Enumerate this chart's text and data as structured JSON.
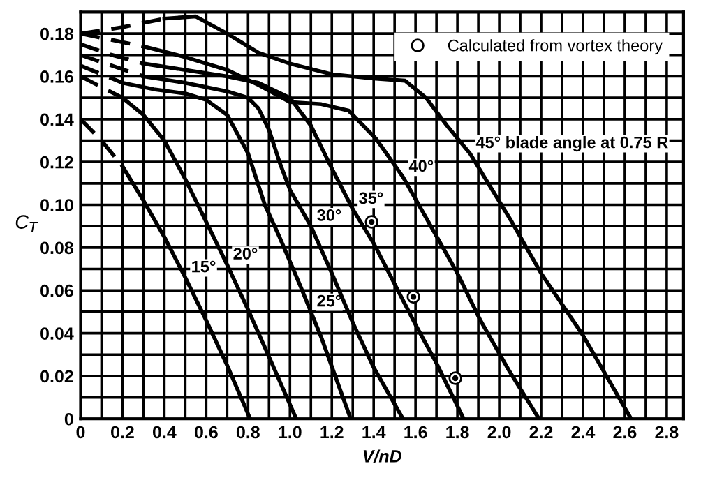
{
  "chart_data": {
    "type": "line",
    "xlabel": "V/nD",
    "ylabel": "C$_{T}$",
    "xlim": [
      0,
      2.88
    ],
    "ylim": [
      0,
      0.19
    ],
    "xticks": [
      0,
      {
        "value": 0.1,
        "label": null
      },
      0.2,
      {
        "value": 0.3,
        "label": null
      },
      0.4,
      {
        "value": 0.5,
        "label": null
      },
      0.6,
      {
        "value": 0.7,
        "label": null
      },
      0.8,
      {
        "value": 0.9,
        "label": null
      },
      {
        "value": 1.0,
        "label": "1.0"
      },
      {
        "value": 1.1,
        "label": null
      },
      1.2,
      {
        "value": 1.3,
        "label": null
      },
      1.4,
      {
        "value": 1.5,
        "label": null
      },
      1.6,
      {
        "value": 1.7,
        "label": null
      },
      1.8,
      {
        "value": 1.9,
        "label": null
      },
      {
        "value": 2.0,
        "label": "2.0"
      },
      {
        "value": 2.1,
        "label": null
      },
      2.2,
      {
        "value": 2.3,
        "label": null
      },
      2.4,
      {
        "value": 2.5,
        "label": null
      },
      2.6,
      {
        "value": 2.7,
        "label": null
      },
      2.8
    ],
    "yticks": [
      0,
      {
        "value": 0.01,
        "label": null
      },
      0.02,
      {
        "value": 0.03,
        "label": null
      },
      0.04,
      {
        "value": 0.05,
        "label": null
      },
      0.06,
      {
        "value": 0.07,
        "label": null
      },
      0.08,
      {
        "value": 0.09,
        "label": null
      },
      {
        "value": 0.1,
        "label": "0.10"
      },
      {
        "value": 0.11,
        "label": null
      },
      0.12,
      {
        "value": 0.13,
        "label": null
      },
      0.14,
      {
        "value": 0.15,
        "label": null
      },
      0.16,
      {
        "value": 0.17,
        "label": null
      },
      0.18
    ],
    "grid": true,
    "legend": "top right",
    "series": [
      {
        "color": "#000000",
        "line_style": "dashed",
        "x": [
          0,
          0.1,
          0.2
        ],
        "values": [
          0.14,
          0.13,
          0.118
        ]
      },
      {
        "color": "#000000",
        "x": [
          0.2,
          0.3,
          0.4,
          0.5,
          0.6,
          0.7,
          0.81
        ],
        "values": [
          0.118,
          0.102,
          0.085,
          0.066,
          0.046,
          0.025,
          0
        ]
      },
      {
        "color": "#000000",
        "line_style": "dashed",
        "x": [
          0,
          0.1,
          0.2
        ],
        "values": [
          0.16,
          0.155,
          0.15
        ]
      },
      {
        "color": "#000000",
        "x": [
          0.2,
          0.3,
          0.4,
          0.5,
          0.6,
          0.7,
          0.8,
          0.9,
          1.03
        ],
        "values": [
          0.15,
          0.142,
          0.13,
          0.112,
          0.092,
          0.072,
          0.051,
          0.029,
          0
        ]
      },
      {
        "color": "#000000",
        "line_style": "dashed",
        "x": [
          0,
          0.1,
          0.2
        ],
        "values": [
          0.165,
          0.161,
          0.157
        ]
      },
      {
        "color": "#000000",
        "x": [
          0.2,
          0.35,
          0.5,
          0.6,
          0.7,
          0.8,
          0.88,
          0.95,
          1.05,
          1.15,
          1.29
        ],
        "values": [
          0.157,
          0.154,
          0.152,
          0.149,
          0.142,
          0.124,
          0.1,
          0.085,
          0.062,
          0.038,
          0
        ]
      },
      {
        "color": "#000000",
        "line_style": "dashed",
        "x": [
          0,
          0.15,
          0.3
        ],
        "values": [
          0.17,
          0.165,
          0.16
        ]
      },
      {
        "color": "#000000",
        "x": [
          0.3,
          0.5,
          0.7,
          0.8,
          0.85,
          0.9,
          0.95,
          1.0,
          1.1,
          1.2,
          1.3,
          1.4,
          1.54
        ],
        "values": [
          0.16,
          0.157,
          0.153,
          0.15,
          0.145,
          0.135,
          0.12,
          0.107,
          0.09,
          0.068,
          0.045,
          0.024,
          0
        ]
      },
      {
        "color": "#000000",
        "line_style": "dashed",
        "x": [
          0,
          0.15,
          0.3
        ],
        "values": [
          0.175,
          0.17,
          0.166
        ]
      },
      {
        "color": "#000000",
        "x": [
          0.3,
          0.5,
          0.7,
          0.85,
          1.0,
          1.1,
          1.2,
          1.3,
          1.4,
          1.5,
          1.6,
          1.7,
          1.83
        ],
        "values": [
          0.166,
          0.163,
          0.16,
          0.157,
          0.15,
          0.137,
          0.117,
          0.098,
          0.082,
          0.063,
          0.044,
          0.026,
          0
        ]
      },
      {
        "color": "#000000",
        "line_style": "dashed",
        "x": [
          0,
          0.15,
          0.3
        ],
        "values": [
          0.18,
          0.177,
          0.174
        ]
      },
      {
        "color": "#000000",
        "x": [
          0.3,
          0.5,
          0.7,
          0.85,
          1.0,
          1.15,
          1.28,
          1.41,
          1.54,
          1.65,
          1.8,
          1.91,
          2.05,
          2.19
        ],
        "values": [
          0.174,
          0.169,
          0.163,
          0.156,
          0.148,
          0.147,
          0.144,
          0.131,
          0.113,
          0.094,
          0.068,
          0.046,
          0.022,
          0
        ]
      },
      {
        "color": "#000000",
        "line_style": "dashed",
        "x": [
          0,
          0.2,
          0.4
        ],
        "values": [
          0.18,
          0.183,
          0.187
        ]
      },
      {
        "color": "#000000",
        "x": [
          0.4,
          0.55,
          0.7,
          0.85,
          1.0,
          1.2,
          1.4,
          1.55,
          1.65,
          1.75,
          1.86,
          1.96,
          2.06,
          2.2,
          2.4,
          2.63
        ],
        "values": [
          0.187,
          0.188,
          0.18,
          0.171,
          0.166,
          0.161,
          0.159,
          0.158,
          0.15,
          0.137,
          0.124,
          0.108,
          0.092,
          0.068,
          0.039,
          0
        ]
      },
      {
        "name": "Calculated from vortex theory",
        "type": "scatter",
        "marker": "circle",
        "color": "#000000",
        "x": [
          1.39,
          1.59,
          1.79
        ],
        "values": [
          0.092,
          0.057,
          0.019
        ]
      }
    ],
    "annotations": [
      {
        "text": "15°",
        "x": 0.5,
        "y": 0.066
      },
      {
        "text": "20°",
        "x": 0.7,
        "y": 0.072
      },
      {
        "text": "25°",
        "x": 1.1,
        "y": 0.05
      },
      {
        "text": "30°",
        "x": 1.1,
        "y": 0.09
      },
      {
        "text": "35°",
        "x": 1.3,
        "y": 0.098
      },
      {
        "text": "40°",
        "x": 1.54,
        "y": 0.113
      },
      {
        "text": "45° blade angle at 0.75 R",
        "x": 1.86,
        "y": 0.124
      }
    ]
  }
}
